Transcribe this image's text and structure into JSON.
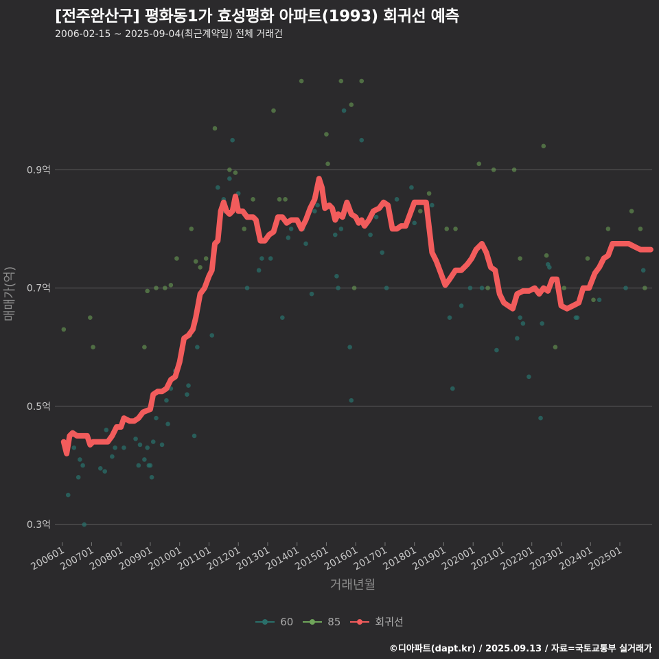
{
  "title": "[전주완산구] 평화동1가 효성평화 아파트(1993) 회귀선 예측",
  "subtitle": "2006-02-15 ~ 2025-09-04(최근계약일) 전체 거래건",
  "caption": "©디아파트(dapt.kr) / 2025.09.13 / 자료=국토교통부 실거래가",
  "colors": {
    "background": "#2b2a2c",
    "grid": "#5c5c5c",
    "s60": "#2a6f6a",
    "s85": "#6fa55a",
    "regression": "#f25c5c"
  },
  "chart_data": {
    "type": "scatter",
    "xlabel": "거래년월",
    "ylabel": "매매가(억)",
    "ylim": [
      0.27,
      1.1
    ],
    "xlim": [
      2005.75,
      2026.1
    ],
    "yticks": [
      {
        "value": 0.3,
        "label": "0.3억"
      },
      {
        "value": 0.5,
        "label": "0.5억"
      },
      {
        "value": 0.7,
        "label": "0.7억"
      },
      {
        "value": 0.9,
        "label": "0.9억"
      }
    ],
    "xticks": [
      {
        "value": 2006,
        "label": "200601"
      },
      {
        "value": 2007,
        "label": "200701"
      },
      {
        "value": 2008,
        "label": "200801"
      },
      {
        "value": 2009,
        "label": "200901"
      },
      {
        "value": 2010,
        "label": "201001"
      },
      {
        "value": 2011,
        "label": "201101"
      },
      {
        "value": 2012,
        "label": "201201"
      },
      {
        "value": 2013,
        "label": "201301"
      },
      {
        "value": 2014,
        "label": "201401"
      },
      {
        "value": 2015,
        "label": "201501"
      },
      {
        "value": 2016,
        "label": "201601"
      },
      {
        "value": 2017,
        "label": "201701"
      },
      {
        "value": 2018,
        "label": "201801"
      },
      {
        "value": 2019,
        "label": "201901"
      },
      {
        "value": 2020,
        "label": "202001"
      },
      {
        "value": 2021,
        "label": "202101"
      },
      {
        "value": 2022,
        "label": "202201"
      },
      {
        "value": 2023,
        "label": "202301"
      },
      {
        "value": 2024,
        "label": "202401"
      },
      {
        "value": 2025,
        "label": "202501"
      }
    ],
    "legend": [
      {
        "name": "60",
        "key": "s60"
      },
      {
        "name": "85",
        "key": "s85"
      },
      {
        "name": "회귀선",
        "key": "regression"
      }
    ],
    "series": [
      {
        "name": "60",
        "points": [
          [
            2006.2,
            0.35
          ],
          [
            2006.4,
            0.43
          ],
          [
            2006.55,
            0.38
          ],
          [
            2006.6,
            0.41
          ],
          [
            2006.7,
            0.4
          ],
          [
            2006.75,
            0.3
          ],
          [
            2007.3,
            0.395
          ],
          [
            2007.45,
            0.39
          ],
          [
            2007.5,
            0.46
          ],
          [
            2007.7,
            0.415
          ],
          [
            2007.8,
            0.43
          ],
          [
            2008.1,
            0.43
          ],
          [
            2008.5,
            0.445
          ],
          [
            2008.6,
            0.4
          ],
          [
            2008.65,
            0.435
          ],
          [
            2008.8,
            0.41
          ],
          [
            2008.9,
            0.43
          ],
          [
            2008.95,
            0.4
          ],
          [
            2009.0,
            0.4
          ],
          [
            2009.05,
            0.38
          ],
          [
            2009.1,
            0.44
          ],
          [
            2009.2,
            0.48
          ],
          [
            2009.4,
            0.435
          ],
          [
            2009.55,
            0.51
          ],
          [
            2009.6,
            0.47
          ],
          [
            2009.7,
            0.53
          ],
          [
            2009.85,
            0.56
          ],
          [
            2010.25,
            0.52
          ],
          [
            2010.3,
            0.535
          ],
          [
            2010.5,
            0.45
          ],
          [
            2010.6,
            0.6
          ],
          [
            2011.1,
            0.62
          ],
          [
            2011.3,
            0.87
          ],
          [
            2011.5,
            0.85
          ],
          [
            2011.55,
            0.83
          ],
          [
            2011.7,
            0.885
          ],
          [
            2011.8,
            0.95
          ],
          [
            2012.0,
            0.86
          ],
          [
            2012.3,
            0.7
          ],
          [
            2012.7,
            0.73
          ],
          [
            2012.8,
            0.75
          ],
          [
            2013.1,
            0.75
          ],
          [
            2013.5,
            0.65
          ],
          [
            2013.7,
            0.785
          ],
          [
            2013.8,
            0.8
          ],
          [
            2014.2,
            0.8
          ],
          [
            2014.3,
            0.775
          ],
          [
            2014.5,
            0.69
          ],
          [
            2014.6,
            0.83
          ],
          [
            2014.7,
            0.84
          ],
          [
            2014.9,
            0.85
          ],
          [
            2015.3,
            0.79
          ],
          [
            2015.35,
            0.72
          ],
          [
            2015.4,
            0.7
          ],
          [
            2015.5,
            0.8
          ],
          [
            2015.6,
            1.0
          ],
          [
            2015.8,
            0.6
          ],
          [
            2015.85,
            0.51
          ],
          [
            2016.2,
            0.95
          ],
          [
            2016.5,
            0.79
          ],
          [
            2016.7,
            0.82
          ],
          [
            2016.9,
            0.76
          ],
          [
            2017.05,
            0.7
          ],
          [
            2017.4,
            0.85
          ],
          [
            2017.9,
            0.87
          ],
          [
            2018.0,
            0.81
          ],
          [
            2018.6,
            0.84
          ],
          [
            2019.2,
            0.65
          ],
          [
            2019.3,
            0.53
          ],
          [
            2019.6,
            0.67
          ],
          [
            2019.9,
            0.7
          ],
          [
            2020.3,
            0.7
          ],
          [
            2020.8,
            0.595
          ],
          [
            2021.5,
            0.615
          ],
          [
            2021.6,
            0.65
          ],
          [
            2021.7,
            0.64
          ],
          [
            2021.9,
            0.55
          ],
          [
            2022.3,
            0.48
          ],
          [
            2022.35,
            0.64
          ],
          [
            2022.55,
            0.74
          ],
          [
            2022.6,
            0.735
          ],
          [
            2023.5,
            0.65
          ],
          [
            2023.55,
            0.65
          ],
          [
            2024.3,
            0.68
          ],
          [
            2025.2,
            0.7
          ],
          [
            2025.8,
            0.73
          ]
        ]
      },
      {
        "name": "85",
        "points": [
          [
            2006.05,
            0.63
          ],
          [
            2006.95,
            0.65
          ],
          [
            2007.05,
            0.6
          ],
          [
            2008.8,
            0.6
          ],
          [
            2008.9,
            0.695
          ],
          [
            2009.2,
            0.7
          ],
          [
            2009.5,
            0.7
          ],
          [
            2009.7,
            0.705
          ],
          [
            2009.9,
            0.75
          ],
          [
            2010.35,
            0.62
          ],
          [
            2010.4,
            0.8
          ],
          [
            2010.55,
            0.745
          ],
          [
            2010.7,
            0.735
          ],
          [
            2010.9,
            0.75
          ],
          [
            2011.2,
            0.97
          ],
          [
            2011.7,
            0.9
          ],
          [
            2011.9,
            0.895
          ],
          [
            2012.2,
            0.8
          ],
          [
            2012.5,
            0.85
          ],
          [
            2013.2,
            1.0
          ],
          [
            2013.4,
            0.85
          ],
          [
            2013.6,
            0.85
          ],
          [
            2014.15,
            1.05
          ],
          [
            2015.0,
            0.96
          ],
          [
            2015.05,
            0.91
          ],
          [
            2015.5,
            1.05
          ],
          [
            2015.85,
            1.01
          ],
          [
            2016.2,
            1.05
          ],
          [
            2015.95,
            0.7
          ],
          [
            2018.2,
            0.83
          ],
          [
            2018.5,
            0.86
          ],
          [
            2019.1,
            0.8
          ],
          [
            2019.4,
            0.8
          ],
          [
            2020.2,
            0.91
          ],
          [
            2020.5,
            0.7
          ],
          [
            2020.7,
            0.9
          ],
          [
            2021.4,
            0.9
          ],
          [
            2021.6,
            0.75
          ],
          [
            2022.4,
            0.94
          ],
          [
            2022.5,
            0.755
          ],
          [
            2022.8,
            0.6
          ],
          [
            2023.1,
            0.7
          ],
          [
            2023.9,
            0.75
          ],
          [
            2024.1,
            0.68
          ],
          [
            2024.6,
            0.8
          ],
          [
            2025.4,
            0.83
          ],
          [
            2025.7,
            0.8
          ],
          [
            2025.85,
            0.7
          ]
        ]
      },
      {
        "name": "회귀선",
        "points": [
          [
            2006.05,
            0.44
          ],
          [
            2006.15,
            0.42
          ],
          [
            2006.25,
            0.45
          ],
          [
            2006.35,
            0.455
          ],
          [
            2006.5,
            0.45
          ],
          [
            2006.7,
            0.45
          ],
          [
            2006.85,
            0.45
          ],
          [
            2006.95,
            0.435
          ],
          [
            2007.05,
            0.44
          ],
          [
            2007.3,
            0.44
          ],
          [
            2007.55,
            0.44
          ],
          [
            2007.7,
            0.45
          ],
          [
            2007.85,
            0.465
          ],
          [
            2008.0,
            0.465
          ],
          [
            2008.1,
            0.48
          ],
          [
            2008.3,
            0.475
          ],
          [
            2008.45,
            0.475
          ],
          [
            2008.6,
            0.48
          ],
          [
            2008.75,
            0.49
          ],
          [
            2009.0,
            0.495
          ],
          [
            2009.1,
            0.52
          ],
          [
            2009.25,
            0.525
          ],
          [
            2009.4,
            0.525
          ],
          [
            2009.55,
            0.53
          ],
          [
            2009.7,
            0.545
          ],
          [
            2009.85,
            0.55
          ],
          [
            2010.0,
            0.575
          ],
          [
            2010.15,
            0.615
          ],
          [
            2010.3,
            0.62
          ],
          [
            2010.45,
            0.63
          ],
          [
            2010.55,
            0.65
          ],
          [
            2010.7,
            0.69
          ],
          [
            2010.85,
            0.7
          ],
          [
            2011.0,
            0.72
          ],
          [
            2011.1,
            0.73
          ],
          [
            2011.2,
            0.775
          ],
          [
            2011.3,
            0.78
          ],
          [
            2011.4,
            0.83
          ],
          [
            2011.5,
            0.845
          ],
          [
            2011.6,
            0.83
          ],
          [
            2011.7,
            0.825
          ],
          [
            2011.8,
            0.83
          ],
          [
            2011.9,
            0.855
          ],
          [
            2012.0,
            0.83
          ],
          [
            2012.15,
            0.83
          ],
          [
            2012.3,
            0.82
          ],
          [
            2012.5,
            0.82
          ],
          [
            2012.6,
            0.815
          ],
          [
            2012.75,
            0.78
          ],
          [
            2012.9,
            0.78
          ],
          [
            2013.05,
            0.79
          ],
          [
            2013.2,
            0.795
          ],
          [
            2013.35,
            0.82
          ],
          [
            2013.5,
            0.82
          ],
          [
            2013.65,
            0.81
          ],
          [
            2013.8,
            0.815
          ],
          [
            2014.0,
            0.815
          ],
          [
            2014.15,
            0.8
          ],
          [
            2014.3,
            0.815
          ],
          [
            2014.45,
            0.835
          ],
          [
            2014.6,
            0.85
          ],
          [
            2014.75,
            0.885
          ],
          [
            2014.85,
            0.87
          ],
          [
            2014.95,
            0.835
          ],
          [
            2015.1,
            0.84
          ],
          [
            2015.2,
            0.835
          ],
          [
            2015.3,
            0.815
          ],
          [
            2015.4,
            0.825
          ],
          [
            2015.55,
            0.82
          ],
          [
            2015.7,
            0.845
          ],
          [
            2015.85,
            0.825
          ],
          [
            2016.0,
            0.82
          ],
          [
            2016.1,
            0.81
          ],
          [
            2016.2,
            0.815
          ],
          [
            2016.3,
            0.805
          ],
          [
            2016.45,
            0.815
          ],
          [
            2016.6,
            0.83
          ],
          [
            2016.8,
            0.835
          ],
          [
            2016.95,
            0.845
          ],
          [
            2017.1,
            0.84
          ],
          [
            2017.25,
            0.8
          ],
          [
            2017.4,
            0.8
          ],
          [
            2017.55,
            0.805
          ],
          [
            2017.7,
            0.805
          ],
          [
            2017.85,
            0.825
          ],
          [
            2018.0,
            0.845
          ],
          [
            2018.2,
            0.845
          ],
          [
            2018.4,
            0.845
          ],
          [
            2018.6,
            0.76
          ],
          [
            2018.75,
            0.745
          ],
          [
            2018.9,
            0.725
          ],
          [
            2019.05,
            0.705
          ],
          [
            2019.2,
            0.715
          ],
          [
            2019.4,
            0.73
          ],
          [
            2019.6,
            0.73
          ],
          [
            2019.8,
            0.74
          ],
          [
            2019.95,
            0.75
          ],
          [
            2020.1,
            0.765
          ],
          [
            2020.3,
            0.775
          ],
          [
            2020.45,
            0.76
          ],
          [
            2020.6,
            0.735
          ],
          [
            2020.75,
            0.73
          ],
          [
            2020.9,
            0.69
          ],
          [
            2021.05,
            0.675
          ],
          [
            2021.2,
            0.67
          ],
          [
            2021.35,
            0.665
          ],
          [
            2021.5,
            0.69
          ],
          [
            2021.7,
            0.695
          ],
          [
            2021.9,
            0.695
          ],
          [
            2022.1,
            0.7
          ],
          [
            2022.25,
            0.69
          ],
          [
            2022.4,
            0.7
          ],
          [
            2022.55,
            0.695
          ],
          [
            2022.7,
            0.715
          ],
          [
            2022.85,
            0.715
          ],
          [
            2023.0,
            0.67
          ],
          [
            2023.2,
            0.665
          ],
          [
            2023.4,
            0.67
          ],
          [
            2023.6,
            0.675
          ],
          [
            2023.75,
            0.7
          ],
          [
            2023.95,
            0.7
          ],
          [
            2024.15,
            0.725
          ],
          [
            2024.3,
            0.735
          ],
          [
            2024.45,
            0.75
          ],
          [
            2024.6,
            0.755
          ],
          [
            2024.75,
            0.775
          ],
          [
            2024.9,
            0.775
          ],
          [
            2025.1,
            0.775
          ],
          [
            2025.3,
            0.775
          ],
          [
            2025.5,
            0.77
          ],
          [
            2025.7,
            0.765
          ],
          [
            2025.85,
            0.765
          ],
          [
            2026.05,
            0.765
          ]
        ]
      }
    ]
  }
}
